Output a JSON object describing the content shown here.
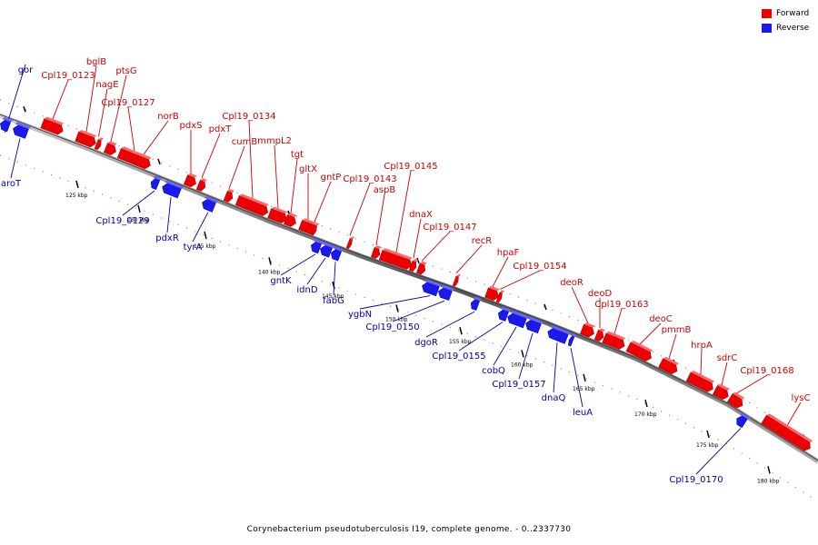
{
  "legend": {
    "forward_label": "Forward",
    "reverse_label": "Reverse",
    "forward_color": "#ee0000",
    "reverse_color": "#1a1aee"
  },
  "caption": "Corynebacterium pseudotuberculosis I19, complete genome. - 0..2337730",
  "genes_forward": [
    "bglB",
    "Cpl19_0123",
    "nagE",
    "ptsG",
    "Cpl19_0127",
    "norB",
    "pdxS",
    "pdxT",
    "Cpl19_0134",
    "cumB",
    "mmpL2",
    "tgt",
    "gltX",
    "gntP",
    "Cpl19_0143",
    "aspB",
    "Cpl19_0145",
    "dnaX",
    "Cpl19_0147",
    "recR",
    "hpaF",
    "Cpl19_0154",
    "deoR",
    "deoD",
    "Cpl19_0163",
    "deoC",
    "pmmB",
    "hrpA",
    "sdrC",
    "Cpl19_0168",
    "lysC"
  ],
  "genes_reverse": [
    "gor",
    "aroT",
    "Cpl19_0129",
    "pdxR",
    "tyrA",
    "gntK",
    "idnD",
    "fabG",
    "ygbN",
    "Cpl19_0150",
    "dgoR",
    "Cpl19_0155",
    "cobQ",
    "Cpl19_0157",
    "dnaQ",
    "leuA",
    "Cpl19_0170"
  ],
  "ticks": [
    "125 kbp",
    "130 kbp",
    "135 kbp",
    "140 kbp",
    "145 kbp",
    "150 kbp",
    "155 kbp",
    "160 kbp",
    "165 kbp",
    "170 kbp",
    "175 kbp",
    "180 kbp"
  ]
}
